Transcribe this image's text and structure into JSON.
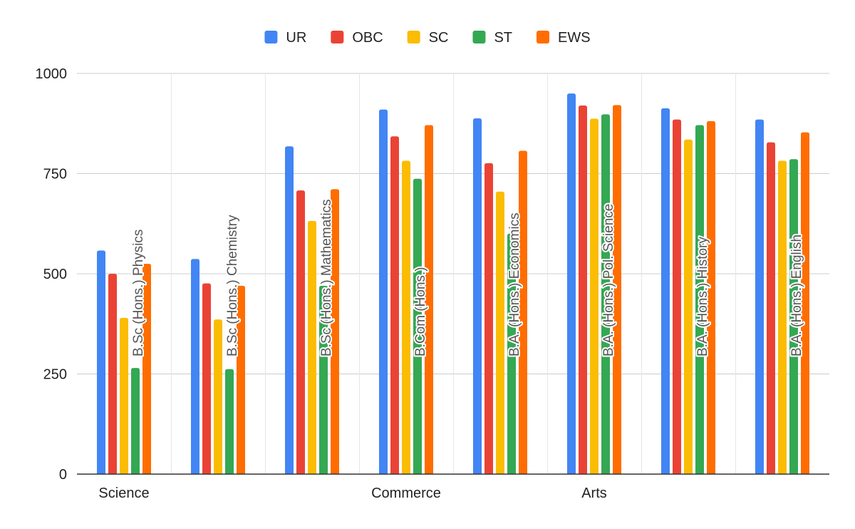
{
  "chart_data": {
    "type": "bar",
    "title": "",
    "xlabel": "",
    "ylabel": "",
    "ylim": [
      0,
      1000
    ],
    "yticks": [
      0,
      250,
      500,
      750,
      1000
    ],
    "grid": true,
    "legend_position": "top-center",
    "categories": [
      "B.Sc (Hons.) Physics",
      "B.Sc (Hons.) Chemistry",
      "B.Sc (Hons.) Mathematics",
      "B.Com (Hons.)",
      "B.A. (Hons.) Economics",
      "B.A. (Hons.) Pol. Science",
      "B.A. (Hons.) History",
      "B.A. (Hons.) English"
    ],
    "groups": [
      {
        "label": "Science",
        "start_index": 0
      },
      {
        "label": "Commerce",
        "start_index": 3
      },
      {
        "label": "Arts",
        "start_index": 5
      }
    ],
    "series": [
      {
        "name": "UR",
        "color": "#4285F4",
        "values": [
          558,
          537,
          818,
          910,
          888,
          950,
          913,
          885
        ]
      },
      {
        "name": "OBC",
        "color": "#EA4335",
        "values": [
          500,
          476,
          708,
          843,
          776,
          920,
          885,
          828
        ]
      },
      {
        "name": "SC",
        "color": "#FBBC04",
        "values": [
          390,
          386,
          632,
          782,
          705,
          887,
          835,
          782
        ]
      },
      {
        "name": "ST",
        "color": "#34A853",
        "values": [
          265,
          262,
          470,
          737,
          600,
          898,
          871,
          786
        ]
      },
      {
        "name": "EWS",
        "color": "#FF6D01",
        "values": [
          525,
          470,
          711,
          871,
          807,
          921,
          881,
          853
        ]
      }
    ]
  }
}
